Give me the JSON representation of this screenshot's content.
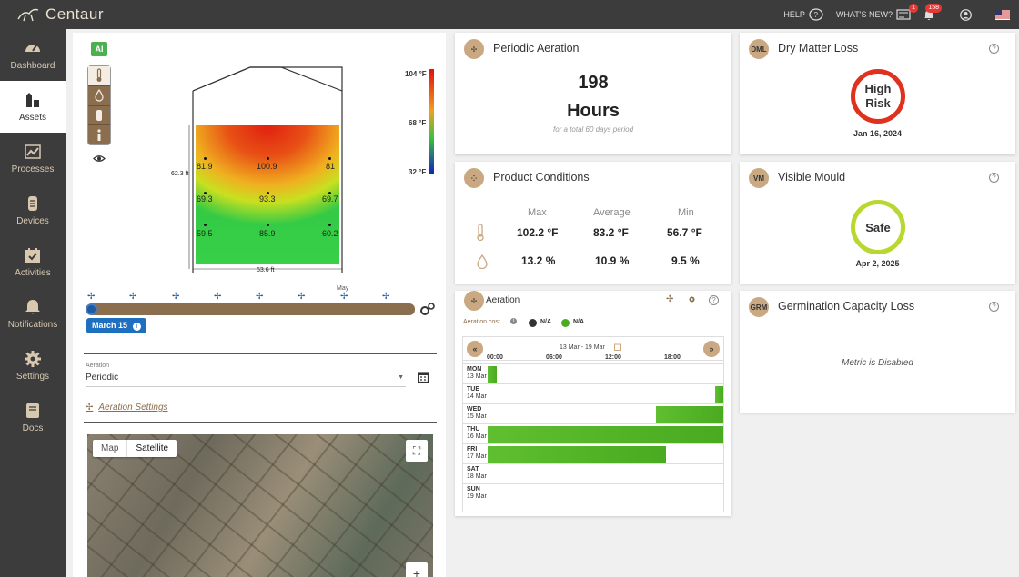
{
  "app": {
    "logo_text": "Centaur"
  },
  "topbar": {
    "help": "HELP",
    "whats_new": "WHAT'S NEW?",
    "whats_new_badge": "1",
    "notif_badge": "158",
    "icons": [
      "help-icon",
      "news-icon",
      "bell-icon",
      "user-icon",
      "us-flag-icon"
    ]
  },
  "sidebar": {
    "items": [
      {
        "label": "Dashboard",
        "icon": "gauge-icon"
      },
      {
        "label": "Assets",
        "icon": "silo-icon"
      },
      {
        "label": "Processes",
        "icon": "chart-icon"
      },
      {
        "label": "Devices",
        "icon": "device-icon"
      },
      {
        "label": "Activities",
        "icon": "calendar-check-icon"
      },
      {
        "label": "Notifications",
        "icon": "bell-icon"
      },
      {
        "label": "Settings",
        "icon": "gear-icon"
      },
      {
        "label": "Docs",
        "icon": "book-icon"
      }
    ],
    "active": "Assets"
  },
  "silo": {
    "ai_label": "AI",
    "height_label": "62.3 ft",
    "width_label": "53.6 ft",
    "temps": [
      "81.9",
      "100.9",
      "81",
      "69.3",
      "93.3",
      "69.7",
      "59.5",
      "85.9",
      "60.2"
    ],
    "scale_max": "104 °F",
    "scale_mid": "68 °F",
    "scale_min": "32 °F"
  },
  "timeline": {
    "month_label": "May",
    "current_date": "March 15"
  },
  "aeration_form": {
    "label": "Aeration",
    "value": "Periodic",
    "settings_link": "Aeration Settings"
  },
  "map": {
    "tab_map": "Map",
    "tab_satellite": "Satellite",
    "zoom_in": "+",
    "fullscreen": "⛶"
  },
  "periodic_aeration": {
    "title": "Periodic Aeration",
    "value": "198",
    "unit": "Hours",
    "note": "for a total 60 days period"
  },
  "product_conditions": {
    "title": "Product Conditions",
    "headers": [
      "Max",
      "Average",
      "Min"
    ],
    "temperature": [
      "102.2 °F",
      "83.2 °F",
      "56.7 °F"
    ],
    "humidity": [
      "13.2 %",
      "10.9 %",
      "9.5 %"
    ]
  },
  "aeration_card": {
    "title": "Aeration",
    "cost_label": "Aeration cost",
    "cost_a": "N/A",
    "cost_b": "N/A",
    "range": "13 Mar - 19 Mar",
    "prev": "«",
    "next": "»",
    "hours": [
      "00:00",
      "06:00",
      "12:00",
      "18:00"
    ],
    "days": [
      {
        "day": "MON",
        "date": "13 Mar"
      },
      {
        "day": "TUE",
        "date": "14 Mar"
      },
      {
        "day": "WED",
        "date": "15 Mar"
      },
      {
        "day": "THU",
        "date": "16 Mar"
      },
      {
        "day": "FRI",
        "date": "17 Mar"
      },
      {
        "day": "SAT",
        "date": "18 Mar"
      },
      {
        "day": "SUN",
        "date": "19 Mar"
      }
    ]
  },
  "dry_matter": {
    "badge": "DML",
    "title": "Dry Matter Loss",
    "status_1": "High",
    "status_2": "Risk",
    "date": "Jan 16, 2024",
    "color": "#e0301e"
  },
  "visible_mould": {
    "badge": "VM",
    "title": "Visible Mould",
    "status": "Safe",
    "date": "Apr 2, 2025",
    "color": "#b8d830"
  },
  "germination": {
    "badge": "GRM",
    "title": "Germination Capacity Loss",
    "message": "Metric is Disabled"
  }
}
